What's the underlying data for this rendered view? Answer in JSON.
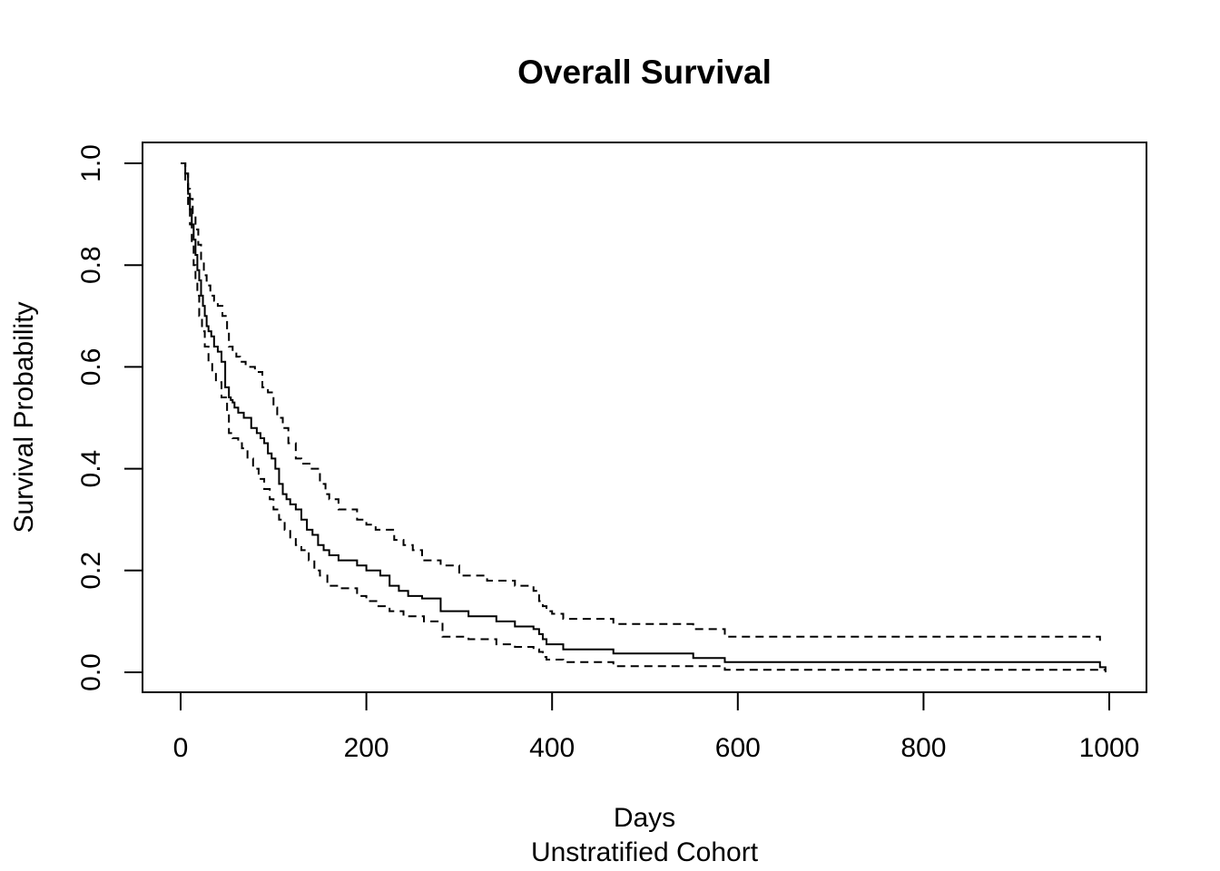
{
  "chart_data": {
    "type": "line",
    "title": "Overall Survival",
    "xlabel": "Days",
    "subtitle": "Unstratified Cohort",
    "ylabel": "Survival Probability",
    "xlim": [
      0,
      1000
    ],
    "ylim": [
      0,
      1
    ],
    "x_ticks": [
      "0",
      "200",
      "400",
      "600",
      "800",
      "1000"
    ],
    "y_ticks": [
      "0.0",
      "0.2",
      "0.4",
      "0.6",
      "0.8",
      "1.0"
    ],
    "grid": false,
    "legend": "none",
    "step": true,
    "series": [
      {
        "style": "solid",
        "x": [
          0,
          5,
          8,
          10,
          12,
          14,
          16,
          18,
          20,
          22,
          24,
          26,
          28,
          30,
          33,
          36,
          40,
          44,
          48,
          52,
          54,
          56,
          58,
          62,
          68,
          76,
          82,
          86,
          90,
          94,
          98,
          102,
          106,
          110,
          114,
          118,
          124,
          130,
          136,
          142,
          148,
          154,
          160,
          170,
          190,
          200,
          215,
          225,
          235,
          245,
          260,
          280,
          310,
          340,
          360,
          380,
          386,
          390,
          394,
          412,
          466,
          552,
          586,
          990,
          996
        ],
        "y": [
          1.0,
          0.98,
          0.94,
          0.91,
          0.88,
          0.85,
          0.82,
          0.79,
          0.77,
          0.74,
          0.72,
          0.7,
          0.68,
          0.67,
          0.66,
          0.64,
          0.63,
          0.61,
          0.56,
          0.54,
          0.535,
          0.53,
          0.52,
          0.51,
          0.5,
          0.48,
          0.47,
          0.46,
          0.45,
          0.43,
          0.42,
          0.4,
          0.37,
          0.35,
          0.34,
          0.33,
          0.32,
          0.3,
          0.28,
          0.27,
          0.25,
          0.24,
          0.23,
          0.22,
          0.21,
          0.2,
          0.19,
          0.17,
          0.16,
          0.15,
          0.145,
          0.12,
          0.11,
          0.1,
          0.09,
          0.085,
          0.075,
          0.065,
          0.055,
          0.045,
          0.037,
          0.028,
          0.02,
          0.01,
          0.0
        ]
      },
      {
        "style": "dashed",
        "x": [
          0,
          5,
          8,
          10,
          13,
          16,
          19,
          22,
          25,
          28,
          32,
          36,
          40,
          45,
          50,
          52,
          56,
          60,
          64,
          70,
          80,
          88,
          94,
          100,
          104,
          110,
          116,
          124,
          130,
          140,
          150,
          156,
          160,
          170,
          190,
          200,
          210,
          230,
          240,
          250,
          260,
          280,
          300,
          330,
          360,
          380,
          386,
          390,
          394,
          400,
          412,
          466,
          552,
          586,
          990
        ],
        "y": [
          1.0,
          0.98,
          0.95,
          0.93,
          0.9,
          0.87,
          0.84,
          0.81,
          0.78,
          0.76,
          0.74,
          0.73,
          0.72,
          0.7,
          0.67,
          0.64,
          0.63,
          0.62,
          0.61,
          0.6,
          0.59,
          0.56,
          0.55,
          0.52,
          0.5,
          0.48,
          0.45,
          0.42,
          0.41,
          0.4,
          0.37,
          0.35,
          0.34,
          0.32,
          0.3,
          0.29,
          0.28,
          0.26,
          0.25,
          0.24,
          0.22,
          0.21,
          0.19,
          0.18,
          0.17,
          0.16,
          0.14,
          0.13,
          0.12,
          0.115,
          0.105,
          0.095,
          0.085,
          0.07,
          0.06
        ]
      },
      {
        "style": "dashed",
        "x": [
          0,
          5,
          8,
          10,
          12,
          14,
          16,
          18,
          20,
          23,
          26,
          30,
          34,
          38,
          44,
          50,
          52,
          56,
          62,
          66,
          72,
          78,
          84,
          90,
          96,
          100,
          106,
          112,
          118,
          124,
          130,
          138,
          144,
          150,
          158,
          170,
          190,
          200,
          212,
          225,
          240,
          262,
          282,
          310,
          340,
          360,
          380,
          386,
          390,
          394,
          412,
          466,
          586,
          996
        ],
        "y": [
          1.0,
          0.96,
          0.92,
          0.88,
          0.84,
          0.8,
          0.77,
          0.74,
          0.7,
          0.67,
          0.64,
          0.61,
          0.59,
          0.57,
          0.54,
          0.51,
          0.47,
          0.46,
          0.45,
          0.44,
          0.42,
          0.4,
          0.38,
          0.36,
          0.34,
          0.32,
          0.3,
          0.28,
          0.265,
          0.25,
          0.24,
          0.22,
          0.2,
          0.19,
          0.17,
          0.165,
          0.15,
          0.14,
          0.13,
          0.12,
          0.11,
          0.1,
          0.07,
          0.065,
          0.055,
          0.05,
          0.045,
          0.04,
          0.03,
          0.025,
          0.02,
          0.012,
          0.005,
          0.005
        ]
      }
    ]
  }
}
